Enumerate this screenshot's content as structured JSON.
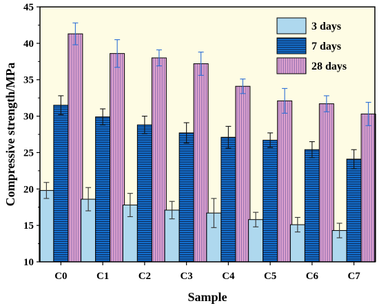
{
  "chart_data": {
    "type": "bar",
    "xlabel": "Sample",
    "ylabel": "Compressive strength/MPa",
    "ylim": [
      10,
      45
    ],
    "yticks": [
      10,
      15,
      20,
      25,
      30,
      35,
      40,
      45
    ],
    "categories": [
      "C0",
      "C1",
      "C2",
      "C3",
      "C4",
      "C5",
      "C6",
      "C7"
    ],
    "legend_position": "top-right",
    "grid": false,
    "series": [
      {
        "name": "3 days",
        "color": "#aed8ee",
        "pattern": "none",
        "values": [
          19.8,
          18.6,
          17.8,
          17.1,
          16.7,
          15.8,
          15.1,
          14.3
        ],
        "errors": [
          1.1,
          1.6,
          1.6,
          1.2,
          2.0,
          1.0,
          1.0,
          1.0
        ]
      },
      {
        "name": "7 days",
        "color": "#1474d6",
        "pattern": "horizontal-lines",
        "values": [
          31.5,
          29.9,
          28.8,
          27.7,
          27.1,
          26.7,
          25.4,
          24.1
        ],
        "errors": [
          1.3,
          1.1,
          1.2,
          1.4,
          1.5,
          1.0,
          1.1,
          1.3
        ]
      },
      {
        "name": "28 days",
        "color": "#e2a4d0",
        "pattern": "vertical-lines",
        "values": [
          41.3,
          38.6,
          38.0,
          37.2,
          34.1,
          32.1,
          31.7,
          30.3
        ],
        "errors": [
          1.5,
          1.9,
          1.1,
          1.6,
          1.0,
          1.7,
          1.1,
          1.6
        ]
      }
    ]
  }
}
